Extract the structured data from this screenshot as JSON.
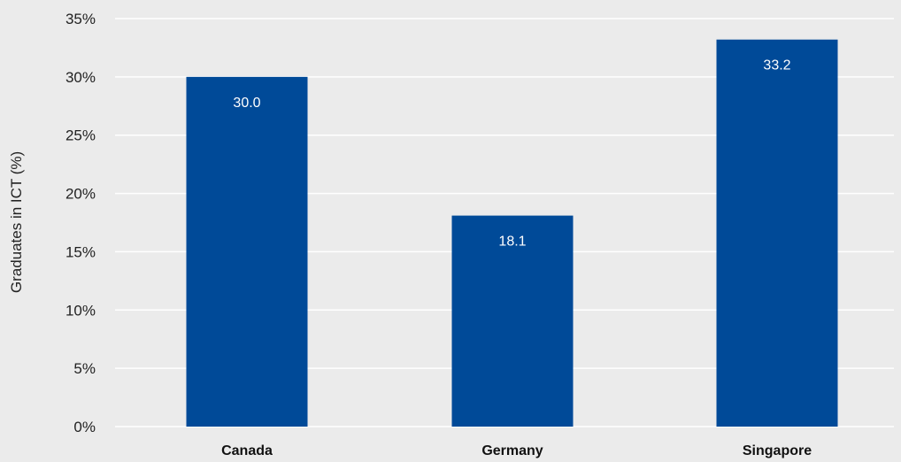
{
  "chart_data": {
    "type": "bar",
    "categories": [
      "Canada",
      "Germany",
      "Singapore"
    ],
    "values": [
      30.0,
      18.1,
      33.2
    ],
    "data_labels": [
      "30.0",
      "18.1",
      "33.2"
    ],
    "title": "",
    "xlabel": "",
    "ylabel": "Graduates in ICT (%)",
    "ylim": [
      0,
      35
    ],
    "yticks": [
      0,
      5,
      10,
      15,
      20,
      25,
      30,
      35
    ],
    "ytick_labels": [
      "0%",
      "5%",
      "10%",
      "15%",
      "20%",
      "25%",
      "30%",
      "35%"
    ],
    "grid": true,
    "legend": "none"
  },
  "colors": {
    "bar": "#004a98",
    "background": "#ebebeb",
    "gridline": "#ffffff"
  }
}
